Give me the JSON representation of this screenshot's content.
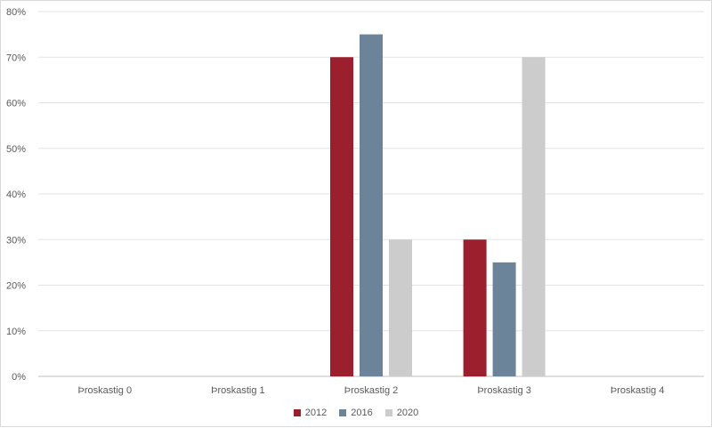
{
  "chart_data": {
    "type": "bar",
    "categories": [
      "Þroskastig 0",
      "Þroskastig 1",
      "Þroskastig 2",
      "Þroskastig 3",
      "Þroskastig 4"
    ],
    "series": [
      {
        "name": "2012",
        "color": "#9b1f2c",
        "values": [
          0,
          0,
          70,
          30,
          0
        ]
      },
      {
        "name": "2016",
        "color": "#6c8499",
        "values": [
          0,
          0,
          75,
          25,
          0
        ]
      },
      {
        "name": "2020",
        "color": "#cccccc",
        "values": [
          0,
          0,
          30,
          70,
          0
        ]
      }
    ],
    "y_ticks": [
      "0%",
      "10%",
      "20%",
      "30%",
      "40%",
      "50%",
      "60%",
      "70%",
      "80%"
    ],
    "ylim": [
      0,
      80
    ],
    "y_unit": "%",
    "grid": true,
    "legend_position": "bottom",
    "title": "",
    "xlabel": "",
    "ylabel": ""
  }
}
